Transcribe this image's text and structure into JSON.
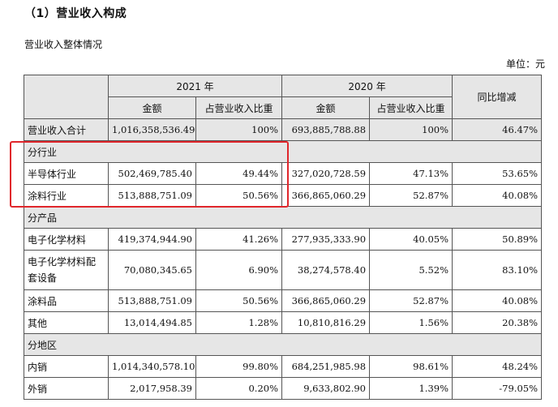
{
  "heading": "（1）营业收入构成",
  "subheading": "营业收入整体情况",
  "unit": "单位：元",
  "header": {
    "year_2021": "2021 年",
    "year_2020": "2020 年",
    "yoy": "同比增减",
    "amount": "金额",
    "share": "占营业收入比重"
  },
  "total": {
    "label": "营业收入合计",
    "a2021": "1,016,358,536.49",
    "s2021": "100%",
    "a2020": "693,885,788.88",
    "s2020": "100%",
    "yoy": "46.47%"
  },
  "sections": {
    "industry": {
      "title": "分行业",
      "rows": [
        {
          "label": "半导体行业",
          "a2021": "502,469,785.40",
          "s2021": "49.44%",
          "a2020": "327,020,728.59",
          "s2020": "47.13%",
          "yoy": "53.65%"
        },
        {
          "label": "涂料行业",
          "a2021": "513,888,751.09",
          "s2021": "50.56%",
          "a2020": "366,865,060.29",
          "s2020": "52.87%",
          "yoy": "40.08%"
        }
      ]
    },
    "product": {
      "title": "分产品",
      "rows": [
        {
          "label": "电子化学材料",
          "a2021": "419,374,944.90",
          "s2021": "41.26%",
          "a2020": "277,935,333.90",
          "s2020": "40.05%",
          "yoy": "50.89%"
        },
        {
          "label": "电子化学材料配套设备",
          "a2021": "70,080,345.65",
          "s2021": "6.90%",
          "a2020": "38,274,578.40",
          "s2020": "5.52%",
          "yoy": "83.10%"
        },
        {
          "label": "涂料品",
          "a2021": "513,888,751.09",
          "s2021": "50.56%",
          "a2020": "366,865,060.29",
          "s2020": "52.87%",
          "yoy": "40.08%"
        },
        {
          "label": "其他",
          "a2021": "13,014,494.85",
          "s2021": "1.28%",
          "a2020": "10,810,816.29",
          "s2020": "1.56%",
          "yoy": "20.38%"
        }
      ]
    },
    "region": {
      "title": "分地区",
      "rows": [
        {
          "label": "内销",
          "a2021": "1,014,340,578.10",
          "s2021": "99.80%",
          "a2020": "684,251,985.98",
          "s2020": "98.61%",
          "yoy": "48.24%"
        },
        {
          "label": "外销",
          "a2021": "2,017,958.39",
          "s2021": "0.20%",
          "a2020": "9,633,802.90",
          "s2020": "1.39%",
          "yoy": "-79.05%"
        }
      ]
    }
  }
}
